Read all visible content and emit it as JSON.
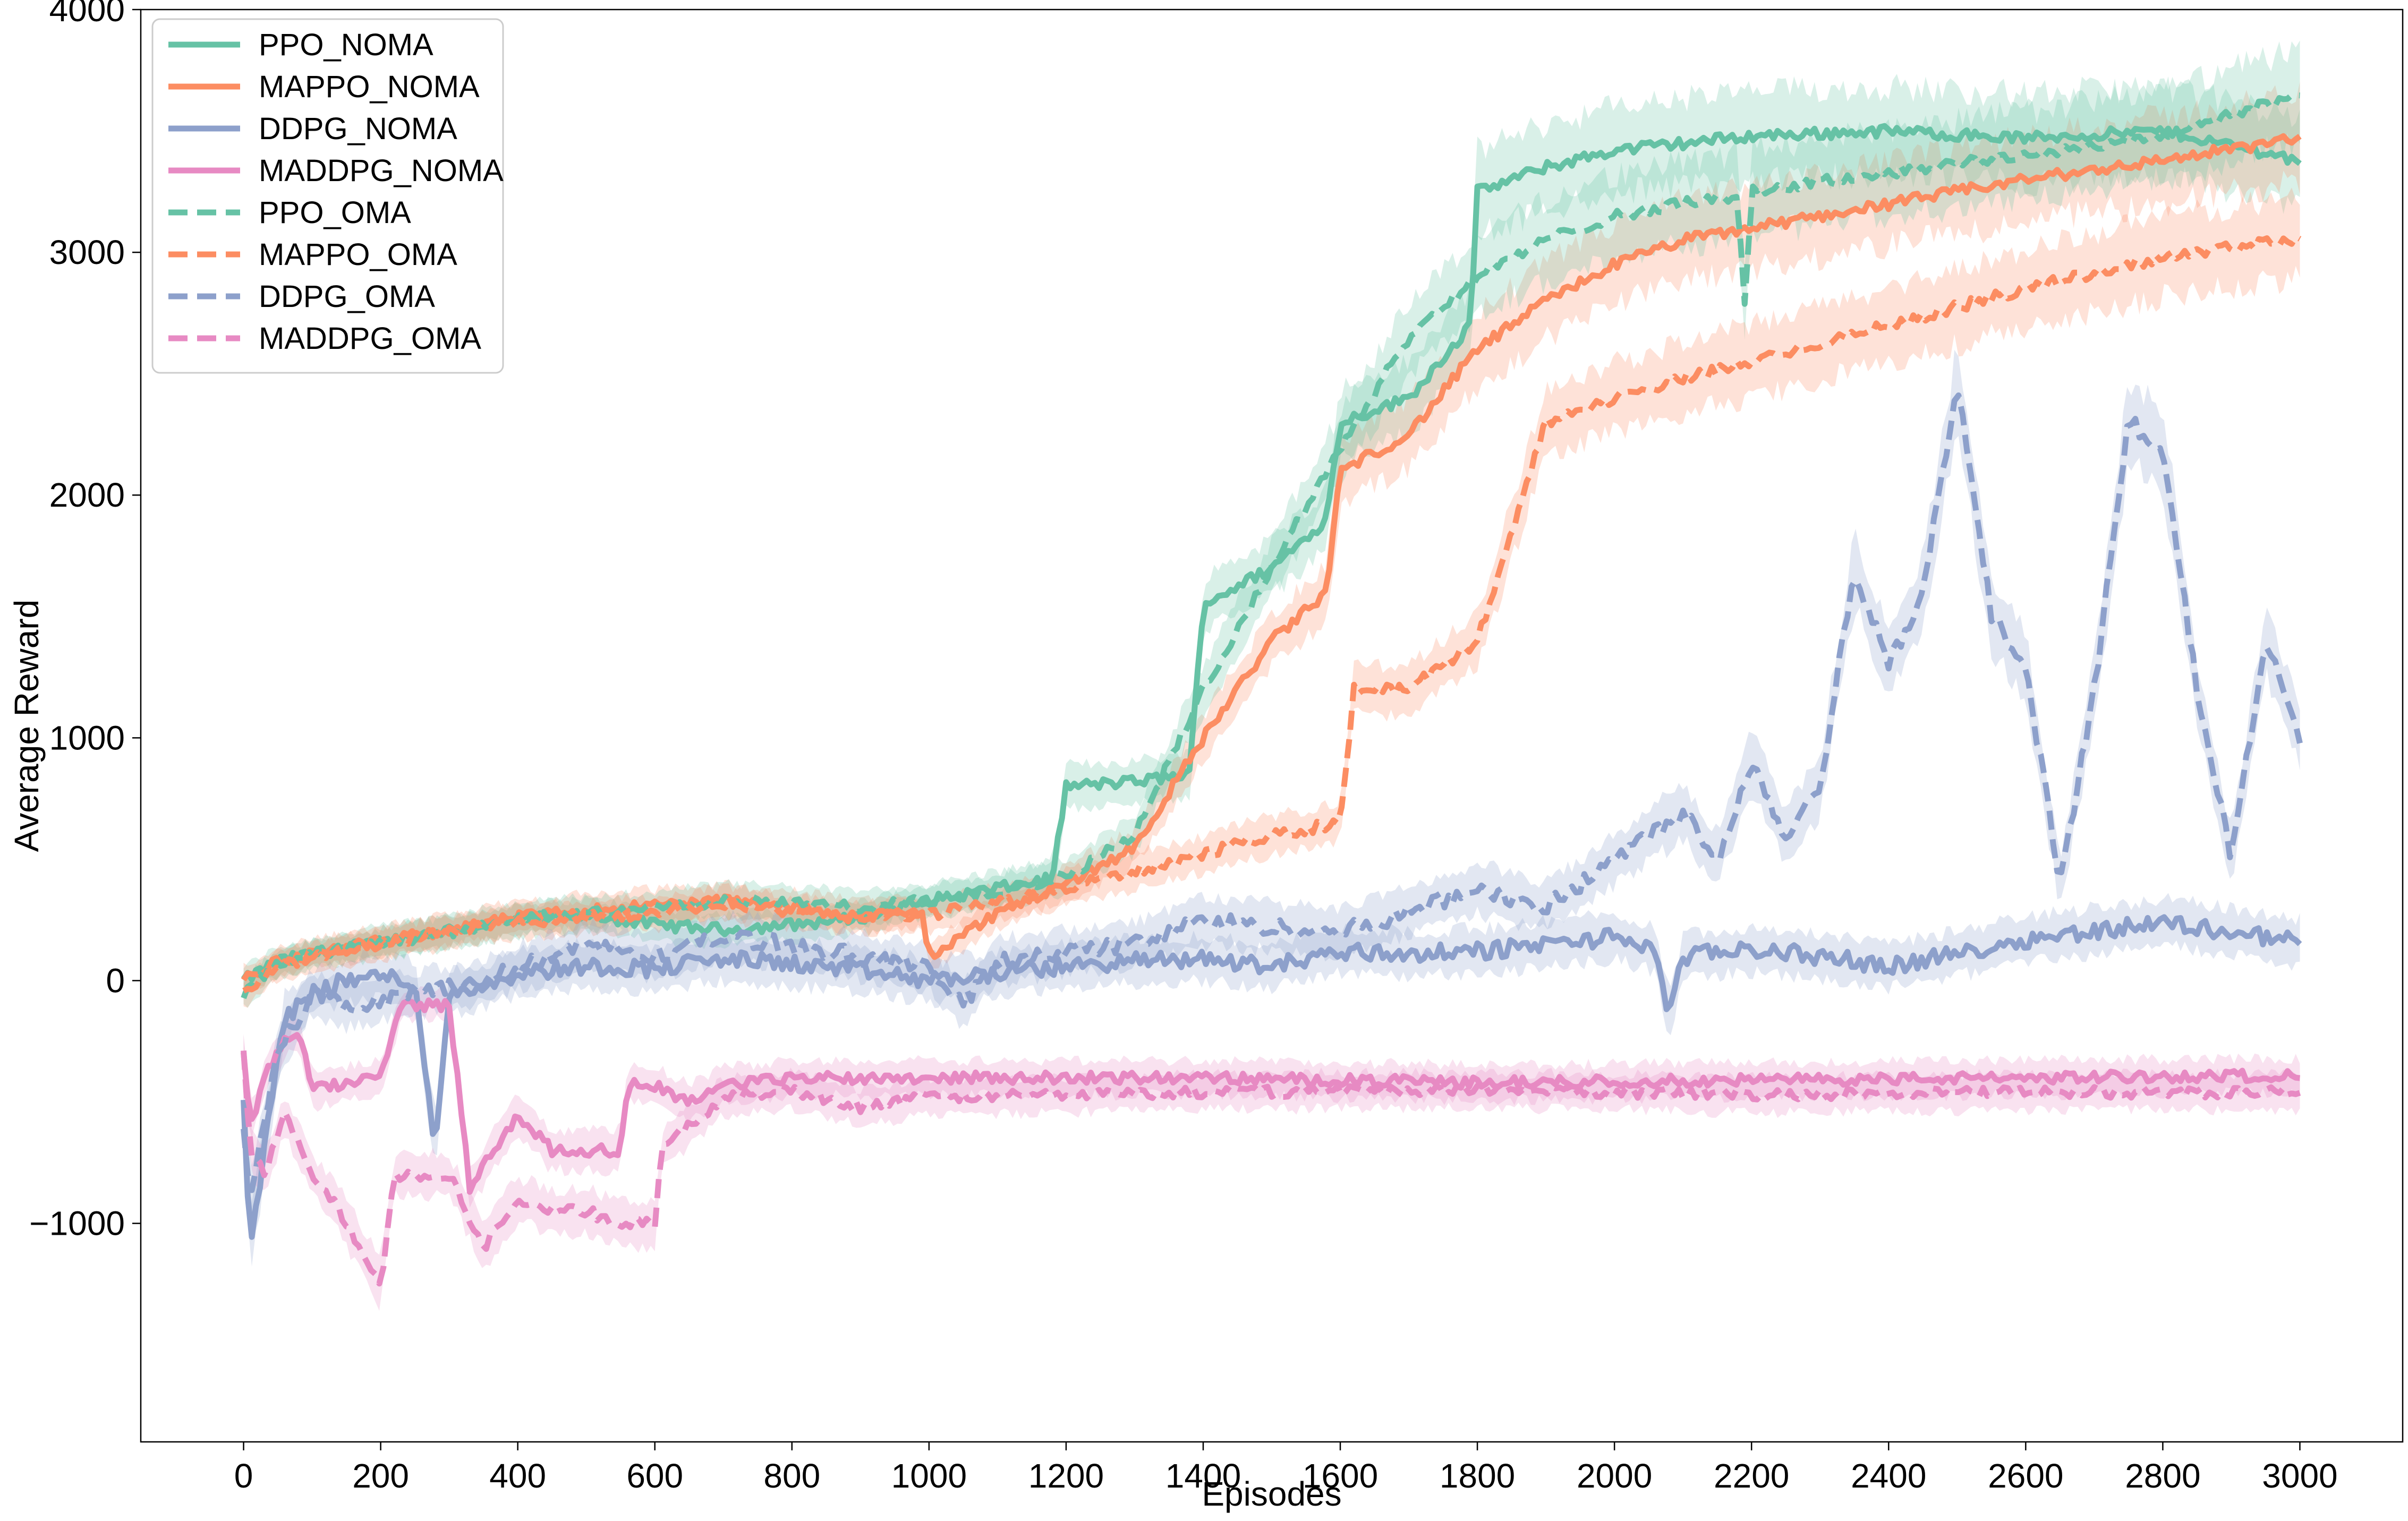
{
  "chart_data": {
    "type": "line",
    "title": "",
    "xlabel": "Episodes",
    "ylabel": "Average Reward",
    "xlim": [
      -150,
      3150
    ],
    "ylim": [
      -1900,
      4000
    ],
    "x_ticks": [
      0,
      200,
      400,
      600,
      800,
      1000,
      1200,
      1400,
      1600,
      1800,
      2000,
      2200,
      2400,
      2600,
      2800,
      3000
    ],
    "x_tick_labels": [
      "0",
      "200",
      "400",
      "600",
      "800",
      "1000",
      "1200",
      "1400",
      "1600",
      "1800",
      "2000",
      "2200",
      "2400",
      "2600",
      "2800",
      "3000"
    ],
    "y_ticks": [
      -1000,
      0,
      1000,
      2000,
      3000,
      4000
    ],
    "y_tick_labels": [
      "−1000",
      "0",
      "1000",
      "2000",
      "3000",
      "4000"
    ],
    "grid": false,
    "legend_position": "top-left",
    "series": [
      {
        "name": "PPO_NOMA",
        "color": "#66c2a5",
        "style": "solid",
        "x": [
          0,
          50,
          100,
          200,
          300,
          400,
          500,
          600,
          700,
          800,
          900,
          1000,
          1100,
          1180,
          1200,
          1300,
          1380,
          1400,
          1500,
          1580,
          1600,
          1700,
          1790,
          1800,
          1900,
          2000,
          2200,
          2400,
          2600,
          2800,
          3000
        ],
        "values": [
          0,
          80,
          110,
          160,
          210,
          250,
          270,
          230,
          210,
          230,
          260,
          330,
          380,
          420,
          800,
          820,
          850,
          1550,
          1700,
          1900,
          2300,
          2400,
          2700,
          3250,
          3350,
          3420,
          3480,
          3500,
          3470,
          3500,
          3380
        ]
      },
      {
        "name": "MAPPO_NOMA",
        "color": "#fc8d62",
        "style": "solid",
        "x": [
          0,
          50,
          100,
          200,
          300,
          400,
          500,
          600,
          700,
          800,
          900,
          990,
          1000,
          1100,
          1200,
          1300,
          1400,
          1500,
          1580,
          1600,
          1700,
          1800,
          1900,
          2000,
          2100,
          2200,
          2400,
          2600,
          2800,
          3000
        ],
        "values": [
          0,
          80,
          110,
          160,
          210,
          260,
          290,
          310,
          330,
          300,
          270,
          280,
          100,
          280,
          400,
          550,
          1000,
          1400,
          1600,
          2100,
          2250,
          2600,
          2800,
          2950,
          3050,
          3100,
          3200,
          3300,
          3380,
          3470
        ]
      },
      {
        "name": "DDPG_NOMA",
        "color": "#8da0cb",
        "style": "solid",
        "x": [
          0,
          10,
          30,
          60,
          100,
          150,
          200,
          250,
          280,
          300,
          350,
          400,
          500,
          600,
          700,
          800,
          900,
          1000,
          1100,
          1200,
          1300,
          1400,
          1500,
          1600,
          1700,
          1800,
          1900,
          2000,
          2060,
          2080,
          2100,
          2200,
          2300,
          2400,
          2500,
          2600,
          2800,
          3000
        ],
        "values": [
          -500,
          -1100,
          -700,
          -150,
          -50,
          0,
          20,
          -10,
          -700,
          -50,
          -20,
          30,
          60,
          50,
          90,
          70,
          40,
          0,
          30,
          60,
          80,
          90,
          60,
          120,
          110,
          120,
          150,
          180,
          130,
          -150,
          100,
          130,
          100,
          60,
          110,
          170,
          240,
          160
        ]
      },
      {
        "name": "MADDPG_NOMA",
        "color": "#e78ac3",
        "style": "solid",
        "x": [
          0,
          10,
          30,
          60,
          80,
          100,
          200,
          230,
          240,
          300,
          330,
          400,
          450,
          500,
          550,
          560,
          600,
          650,
          700,
          800,
          1000,
          1400,
          1800,
          2200,
          2600,
          3000
        ],
        "values": [
          -300,
          -600,
          -400,
          -250,
          -200,
          -450,
          -400,
          -100,
          -100,
          -100,
          -850,
          -550,
          -700,
          -700,
          -700,
          -430,
          -430,
          -500,
          -430,
          -400,
          -400,
          -400,
          -420,
          -410,
          -400,
          -390
        ]
      },
      {
        "name": "PPO_OMA",
        "color": "#66c2a5",
        "style": "dashed",
        "x": [
          0,
          50,
          100,
          200,
          300,
          400,
          500,
          600,
          700,
          800,
          900,
          1000,
          1100,
          1200,
          1300,
          1400,
          1500,
          1600,
          1700,
          1800,
          1900,
          2000,
          2100,
          2180,
          2190,
          2200,
          2400,
          2600,
          2800,
          3000
        ],
        "values": [
          -50,
          70,
          110,
          150,
          200,
          250,
          280,
          300,
          330,
          320,
          300,
          330,
          370,
          430,
          600,
          1200,
          1700,
          2200,
          2650,
          2900,
          3050,
          3150,
          3200,
          3230,
          2800,
          3250,
          3330,
          3400,
          3480,
          3650
        ]
      },
      {
        "name": "MAPPO_OMA",
        "color": "#fc8d62",
        "style": "dashed",
        "x": [
          0,
          50,
          100,
          200,
          300,
          400,
          500,
          600,
          700,
          800,
          900,
          1000,
          1100,
          1200,
          1300,
          1400,
          1500,
          1600,
          1620,
          1700,
          1800,
          1900,
          2000,
          2100,
          2200,
          2400,
          2600,
          2800,
          3000
        ],
        "values": [
          -50,
          60,
          100,
          150,
          200,
          240,
          260,
          280,
          320,
          280,
          260,
          270,
          320,
          380,
          450,
          520,
          600,
          650,
          1200,
          1200,
          1400,
          2300,
          2400,
          2480,
          2550,
          2700,
          2850,
          2980,
          3060
        ]
      },
      {
        "name": "DDPG_OMA",
        "color": "#8da0cb",
        "style": "dashed",
        "x": [
          0,
          10,
          50,
          100,
          150,
          200,
          250,
          300,
          350,
          400,
          500,
          600,
          700,
          800,
          900,
          1000,
          1050,
          1100,
          1200,
          1300,
          1400,
          1500,
          1600,
          1700,
          1800,
          1900,
          2000,
          2100,
          2150,
          2200,
          2250,
          2300,
          2350,
          2400,
          2450,
          2500,
          2550,
          2600,
          2650,
          2700,
          2750,
          2800,
          2850,
          2900,
          2950,
          3000
        ],
        "values": [
          -600,
          -900,
          -300,
          -50,
          -100,
          -80,
          -50,
          -30,
          0,
          50,
          150,
          100,
          180,
          150,
          100,
          50,
          -100,
          80,
          120,
          150,
          250,
          220,
          200,
          280,
          380,
          300,
          500,
          700,
          500,
          900,
          600,
          800,
          1700,
          1300,
          1600,
          2450,
          1500,
          1300,
          400,
          1200,
          2300,
          2200,
          1200,
          500,
          1400,
          1000
        ]
      },
      {
        "name": "MADDPG_OMA",
        "color": "#e78ac3",
        "style": "dashed",
        "x": [
          0,
          10,
          30,
          60,
          100,
          130,
          200,
          220,
          300,
          350,
          400,
          450,
          500,
          550,
          600,
          610,
          650,
          700,
          800,
          900,
          1000,
          1400,
          1800,
          2200,
          2600,
          3000
        ],
        "values": [
          -300,
          -700,
          -800,
          -550,
          -800,
          -900,
          -1250,
          -800,
          -800,
          -1100,
          -900,
          -950,
          -950,
          -1000,
          -1000,
          -700,
          -600,
          -480,
          -450,
          -520,
          -480,
          -460,
          -450,
          -470,
          -460,
          -460
        ]
      }
    ]
  }
}
